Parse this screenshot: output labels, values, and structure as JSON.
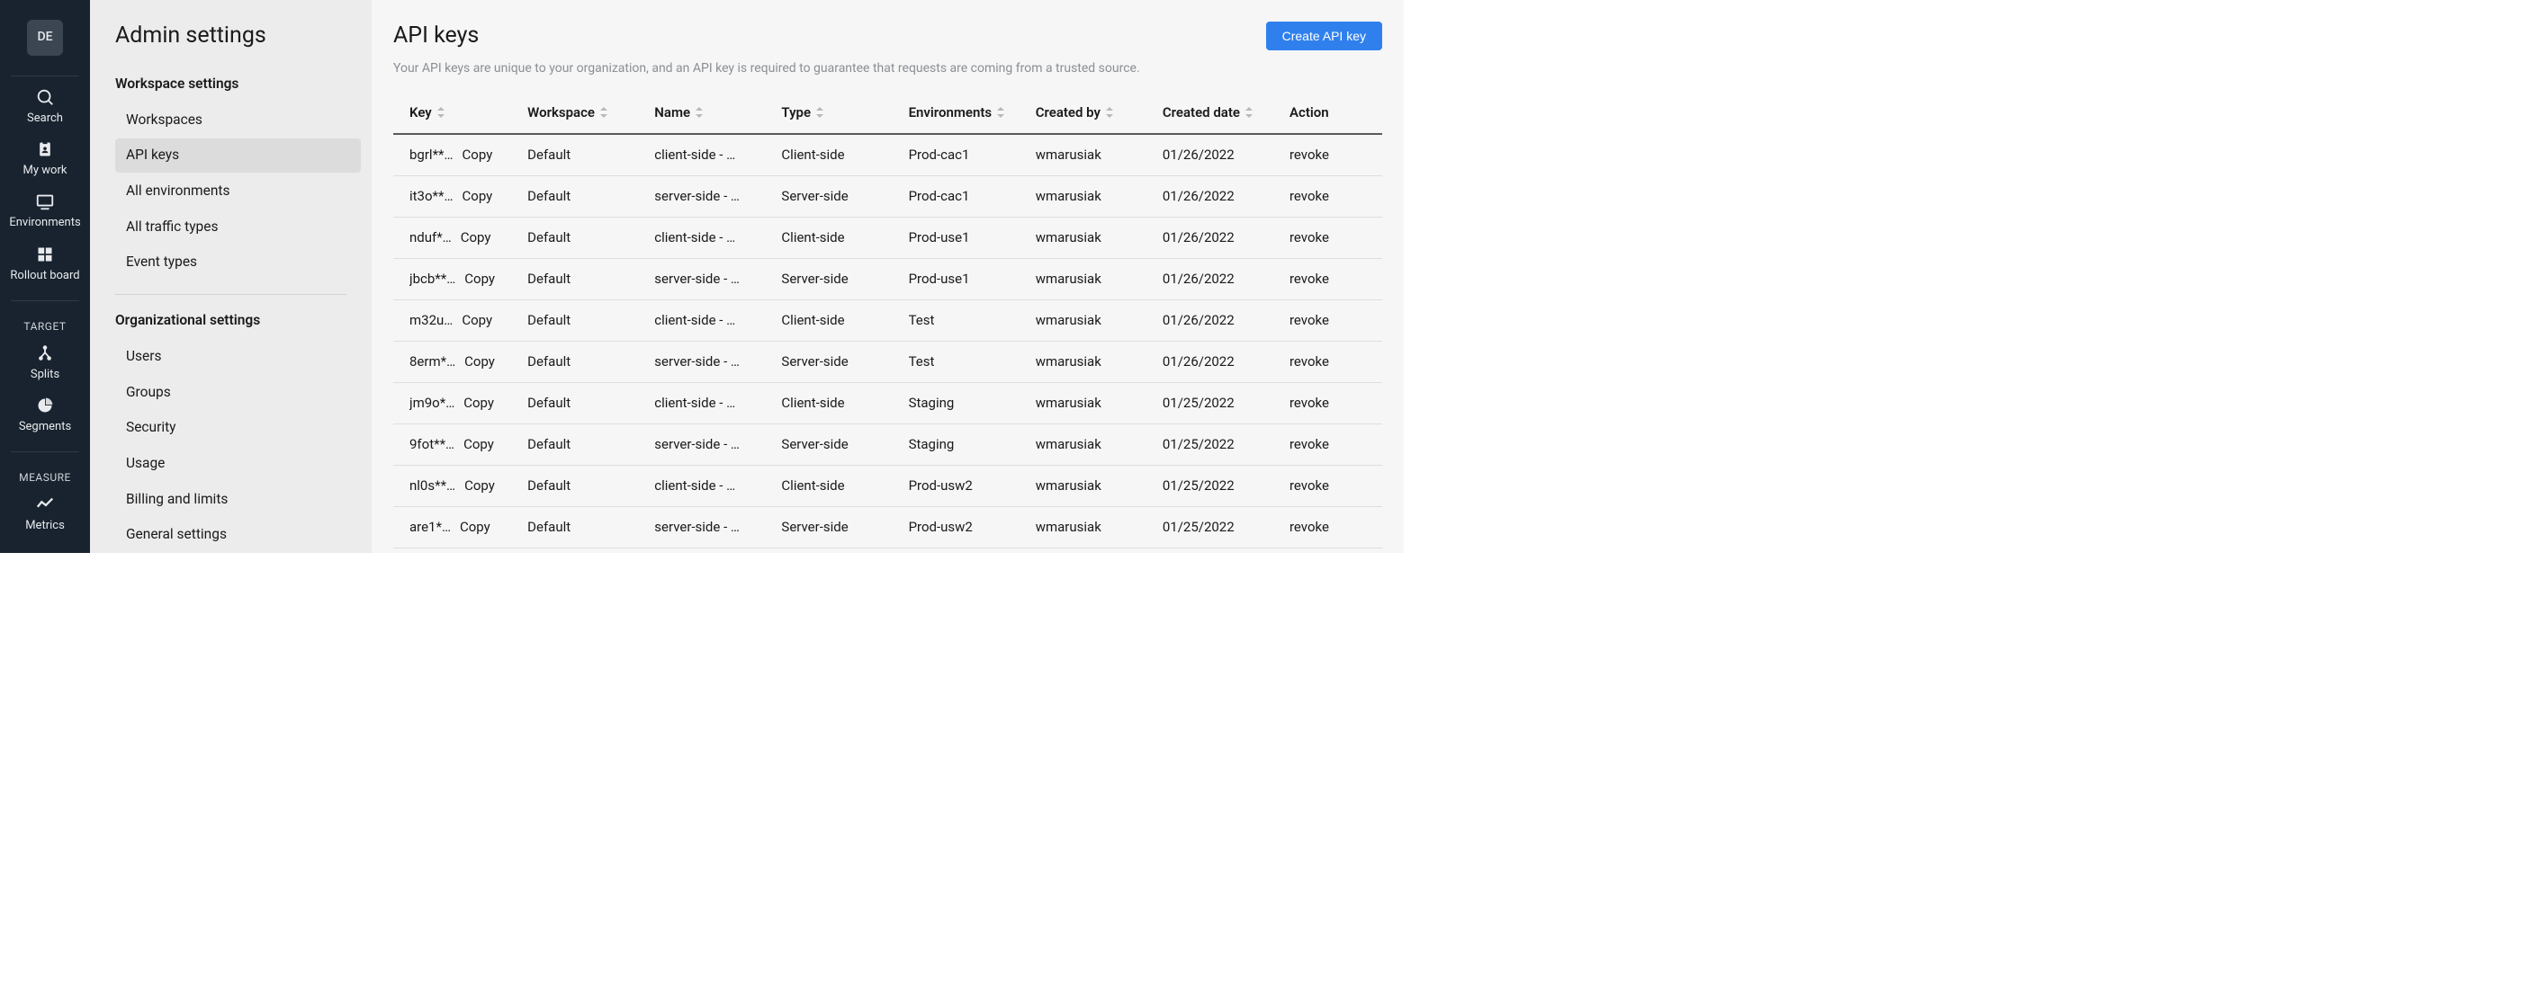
{
  "avatar": {
    "initials": "DE"
  },
  "rail": {
    "items": [
      {
        "label": "Search"
      },
      {
        "label": "My work"
      },
      {
        "label": "Environments"
      },
      {
        "label": "Rollout board"
      }
    ],
    "sections": [
      {
        "label": "TARGET",
        "items": [
          {
            "label": "Splits"
          },
          {
            "label": "Segments"
          }
        ]
      },
      {
        "label": "MEASURE",
        "items": [
          {
            "label": "Metrics"
          }
        ]
      }
    ]
  },
  "sidebar": {
    "title": "Admin settings",
    "groups": [
      {
        "title": "Workspace settings",
        "items": [
          {
            "label": "Workspaces"
          },
          {
            "label": "API keys",
            "active": true
          },
          {
            "label": "All environments"
          },
          {
            "label": "All traffic types"
          },
          {
            "label": "Event types"
          }
        ]
      },
      {
        "title": "Organizational settings",
        "items": [
          {
            "label": "Users"
          },
          {
            "label": "Groups"
          },
          {
            "label": "Security"
          },
          {
            "label": "Usage"
          },
          {
            "label": "Billing and limits"
          },
          {
            "label": "General settings"
          }
        ]
      }
    ]
  },
  "page": {
    "title": "API keys",
    "create_label": "Create API key",
    "description": "Your API keys are unique to your organization, and an API key is required to guarantee that requests are coming from a trusted source."
  },
  "table": {
    "columns": {
      "key": "Key",
      "workspace": "Workspace",
      "name": "Name",
      "type": "Type",
      "environments": "Environments",
      "created_by": "Created by",
      "created_date": "Created date",
      "action": "Action"
    },
    "copy_label": "Copy",
    "revoke_label": "revoke",
    "rows": [
      {
        "key": "bgrl**…",
        "workspace": "Default",
        "name": "client-side - …",
        "type": "Client-side",
        "environments": "Prod-cac1",
        "created_by": "wmarusiak",
        "created_date": "01/26/2022"
      },
      {
        "key": "it3o**…",
        "workspace": "Default",
        "name": "server-side - …",
        "type": "Server-side",
        "environments": "Prod-cac1",
        "created_by": "wmarusiak",
        "created_date": "01/26/2022"
      },
      {
        "key": "nduf*…",
        "workspace": "Default",
        "name": "client-side - …",
        "type": "Client-side",
        "environments": "Prod-use1",
        "created_by": "wmarusiak",
        "created_date": "01/26/2022"
      },
      {
        "key": "jbcb**…",
        "workspace": "Default",
        "name": "server-side - …",
        "type": "Server-side",
        "environments": "Prod-use1",
        "created_by": "wmarusiak",
        "created_date": "01/26/2022"
      },
      {
        "key": "m32u…",
        "workspace": "Default",
        "name": "client-side - …",
        "type": "Client-side",
        "environments": "Test",
        "created_by": "wmarusiak",
        "created_date": "01/26/2022"
      },
      {
        "key": "8erm*…",
        "workspace": "Default",
        "name": "server-side - …",
        "type": "Server-side",
        "environments": "Test",
        "created_by": "wmarusiak",
        "created_date": "01/26/2022"
      },
      {
        "key": "jm9o*…",
        "workspace": "Default",
        "name": "client-side - …",
        "type": "Client-side",
        "environments": "Staging",
        "created_by": "wmarusiak",
        "created_date": "01/25/2022"
      },
      {
        "key": "9fot**…",
        "workspace": "Default",
        "name": "server-side - …",
        "type": "Server-side",
        "environments": "Staging",
        "created_by": "wmarusiak",
        "created_date": "01/25/2022"
      },
      {
        "key": "nl0s**…",
        "workspace": "Default",
        "name": "client-side - …",
        "type": "Client-side",
        "environments": "Prod-usw2",
        "created_by": "wmarusiak",
        "created_date": "01/25/2022"
      },
      {
        "key": "are1*…",
        "workspace": "Default",
        "name": "server-side - …",
        "type": "Server-side",
        "environments": "Prod-usw2",
        "created_by": "wmarusiak",
        "created_date": "01/25/2022"
      }
    ]
  },
  "colors": {
    "rail_bg": "#18232f",
    "rail_text": "#e8eaed",
    "sidebar_bg": "#ececec",
    "sidebar_active_bg": "#dcdcdc",
    "main_bg": "#f6f6f6",
    "primary_button": "#2f80ed",
    "desc_text": "#8a8f95",
    "header_border": "#5a5a5a",
    "row_border": "#dedede"
  }
}
